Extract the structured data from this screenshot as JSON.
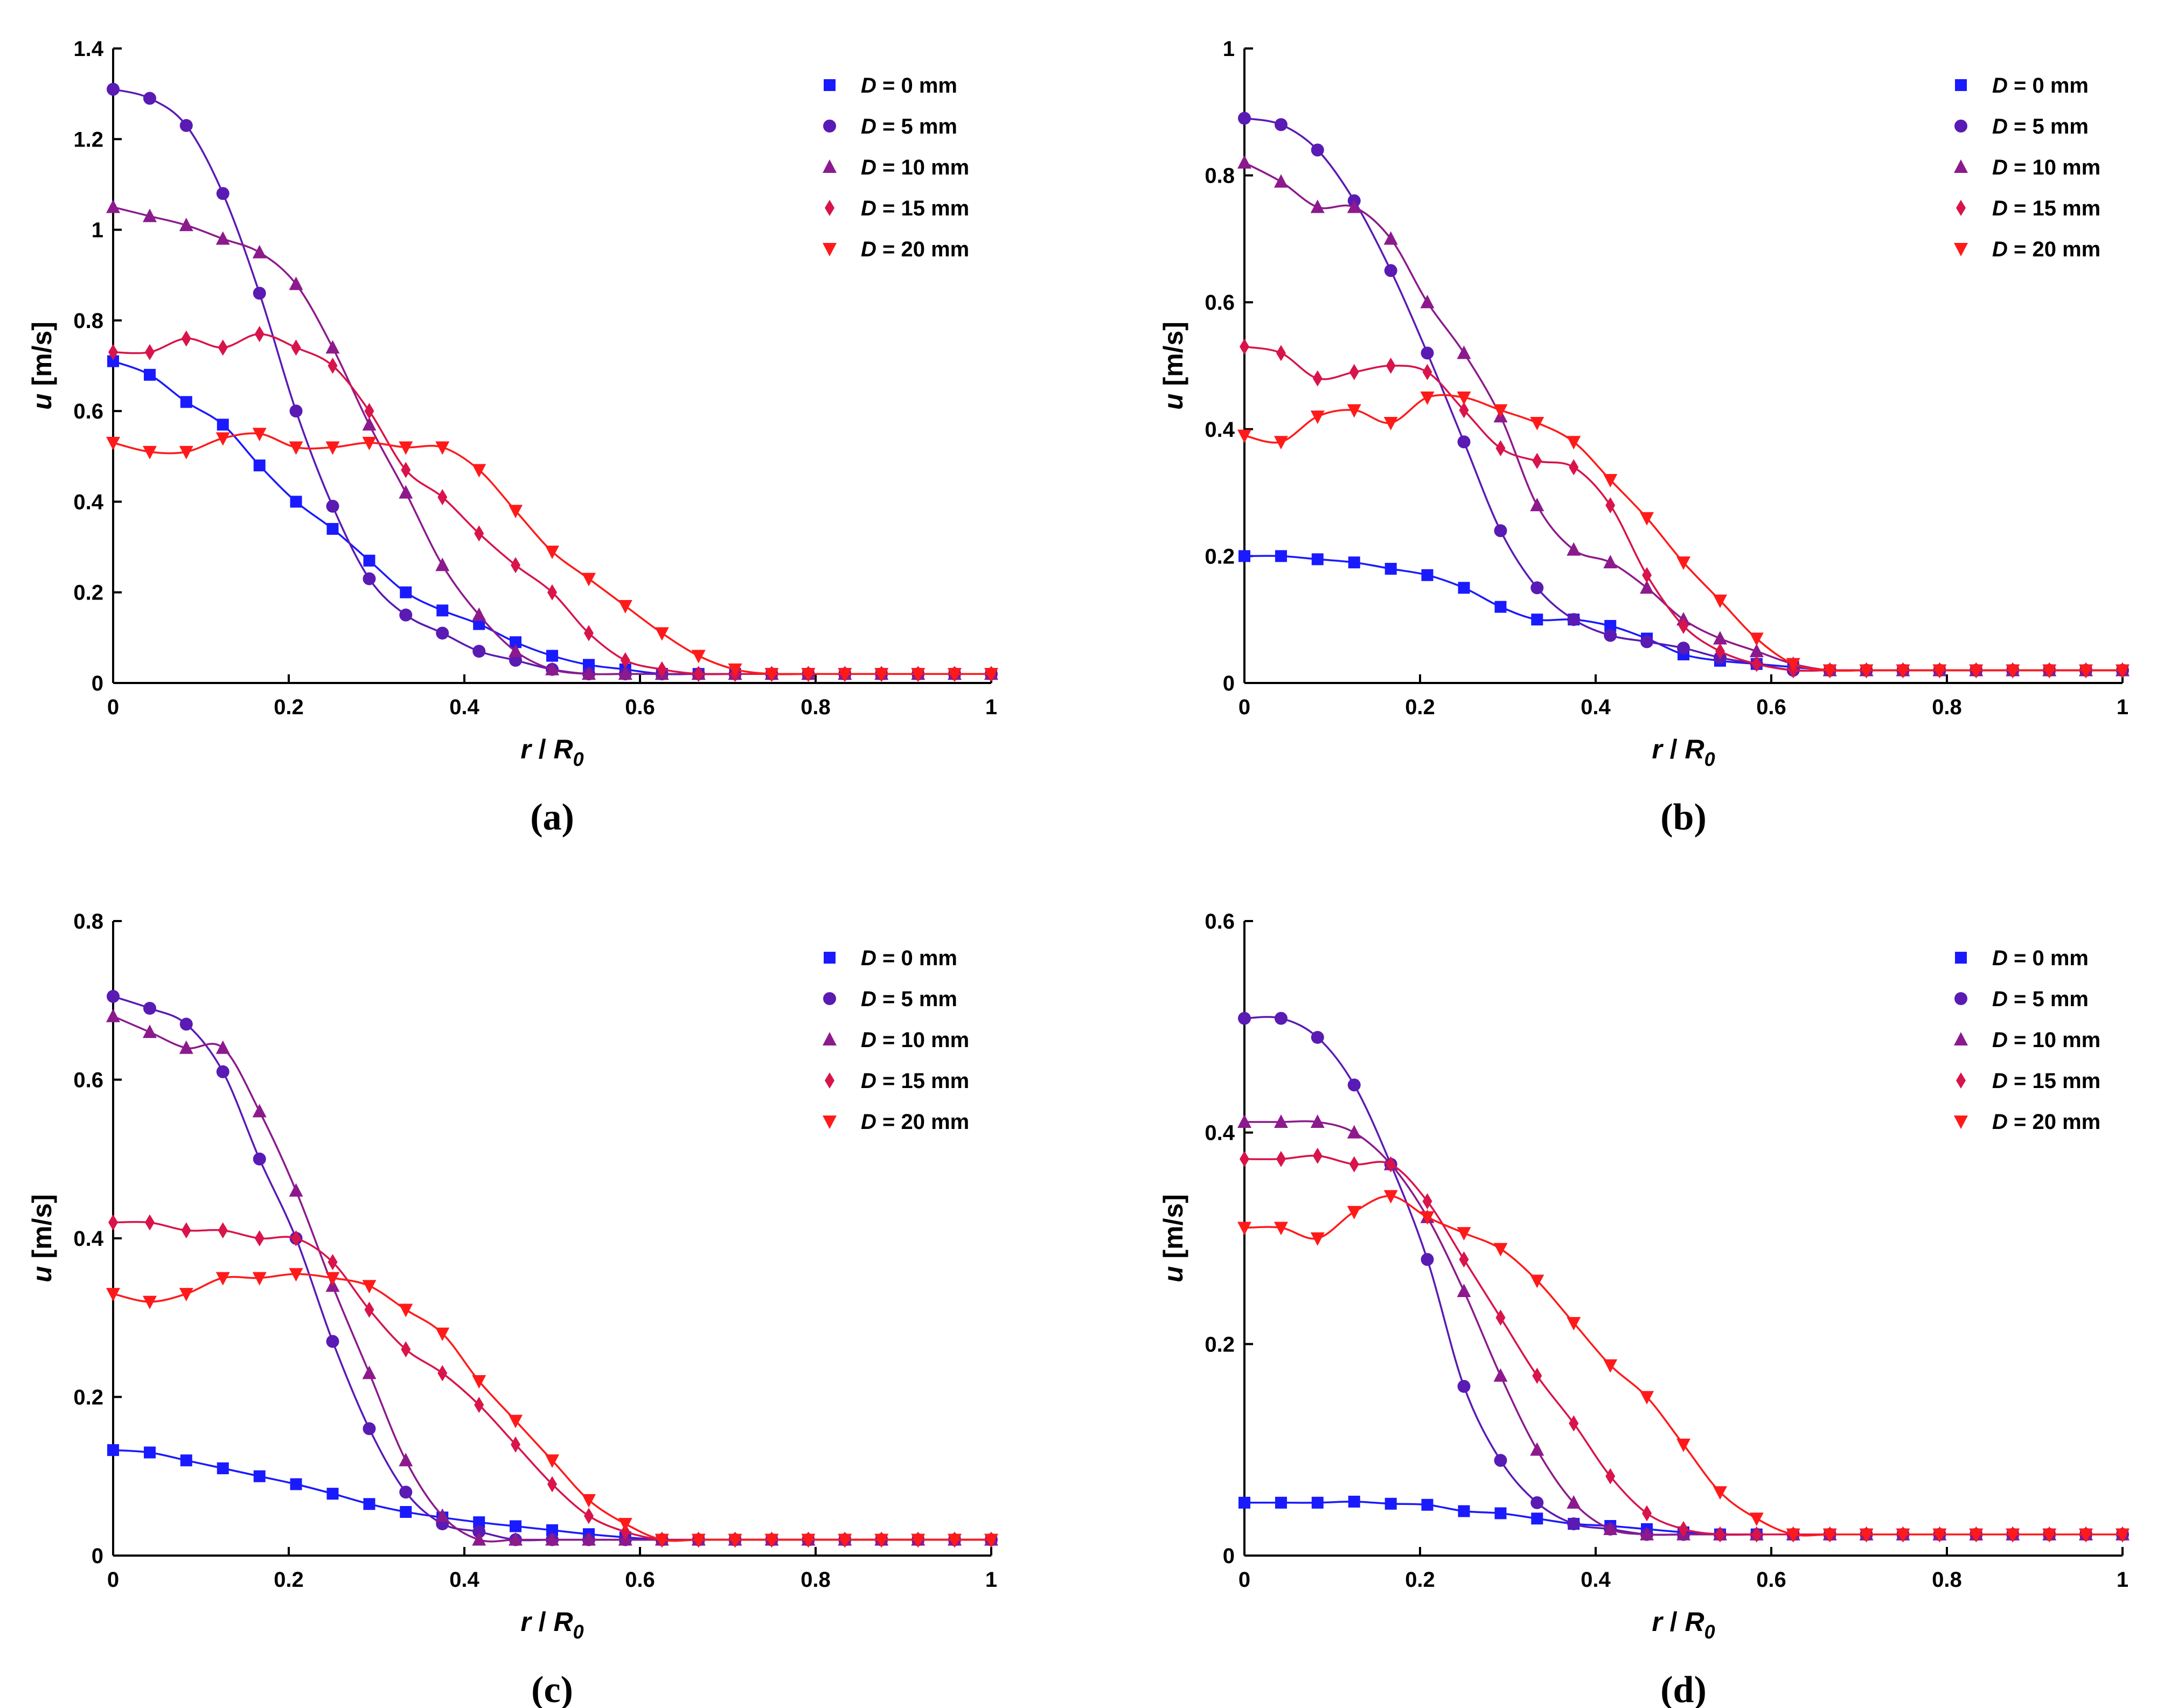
{
  "figure": {
    "x_label": {
      "italic": "r",
      "sep": " / ",
      "main": "R",
      "sub": "0"
    },
    "y_label": {
      "italic": "u",
      "unit": " [m/s]"
    },
    "legend_prefix": "D",
    "series_style": [
      {
        "name": "D = 0 mm",
        "value_text": " = 0 mm",
        "color": "#1a1aff",
        "marker": "square"
      },
      {
        "name": "D = 5 mm",
        "value_text": " = 5 mm",
        "color": "#5a1ab4",
        "marker": "circle"
      },
      {
        "name": "D = 10 mm",
        "value_text": " = 10 mm",
        "color": "#8c1a8c",
        "marker": "triangle-up"
      },
      {
        "name": "D = 15 mm",
        "value_text": " = 15 mm",
        "color": "#d8144a",
        "marker": "diamond"
      },
      {
        "name": "D = 20 mm",
        "value_text": " = 20 mm",
        "color": "#ff1a1a",
        "marker": "triangle-down"
      }
    ]
  },
  "chart_data": [
    {
      "type": "line",
      "caption": "(a)",
      "xlabel": "r / R0",
      "ylabel": "u [m/s]",
      "xlim": [
        0,
        1
      ],
      "ylim": [
        0,
        1.4
      ],
      "xticks": [
        0,
        0.2,
        0.4,
        0.6,
        0.8,
        1
      ],
      "xtick_labels": [
        "0",
        "0.2",
        "0.4",
        "0.6",
        "0.8",
        "1"
      ],
      "yticks": [
        0,
        0.2,
        0.4,
        0.6,
        0.8,
        1,
        1.2,
        1.4
      ],
      "ytick_labels": [
        "0",
        "0.2",
        "0.4",
        "0.6",
        "0.8",
        "1",
        "1.2",
        "1.4"
      ],
      "legend": [
        "D = 0 mm",
        "D = 5 mm",
        "D = 10 mm",
        "D = 15 mm",
        "D = 20 mm"
      ],
      "legend_position": "top-right",
      "x": [
        0,
        0.0417,
        0.0833,
        0.125,
        0.1667,
        0.2083,
        0.25,
        0.2917,
        0.3333,
        0.375,
        0.4167,
        0.4583,
        0.5,
        0.5417,
        0.5833,
        0.625,
        0.6667,
        0.7083,
        0.75,
        0.7917,
        0.8333,
        0.875,
        0.9167,
        0.9583,
        1.0
      ],
      "series": [
        {
          "name": "D = 0 mm",
          "values": [
            0.71,
            0.68,
            0.62,
            0.57,
            0.48,
            0.4,
            0.34,
            0.27,
            0.2,
            0.16,
            0.13,
            0.09,
            0.06,
            0.04,
            0.03,
            0.02,
            0.02,
            0.02,
            0.02,
            0.02,
            0.02,
            0.02,
            0.02,
            0.02,
            0.02
          ]
        },
        {
          "name": "D = 5 mm",
          "values": [
            1.31,
            1.29,
            1.23,
            1.08,
            0.86,
            0.6,
            0.39,
            0.23,
            0.15,
            0.11,
            0.07,
            0.05,
            0.03,
            0.02,
            0.02,
            0.02,
            0.02,
            0.02,
            0.02,
            0.02,
            0.02,
            0.02,
            0.02,
            0.02,
            0.02
          ]
        },
        {
          "name": "D = 10 mm",
          "values": [
            1.05,
            1.03,
            1.01,
            0.98,
            0.95,
            0.88,
            0.74,
            0.57,
            0.42,
            0.26,
            0.15,
            0.07,
            0.03,
            0.02,
            0.02,
            0.02,
            0.02,
            0.02,
            0.02,
            0.02,
            0.02,
            0.02,
            0.02,
            0.02,
            0.02
          ]
        },
        {
          "name": "D = 15 mm",
          "values": [
            0.73,
            0.73,
            0.76,
            0.74,
            0.77,
            0.74,
            0.7,
            0.6,
            0.47,
            0.41,
            0.33,
            0.26,
            0.2,
            0.11,
            0.05,
            0.03,
            0.02,
            0.02,
            0.02,
            0.02,
            0.02,
            0.02,
            0.02,
            0.02,
            0.02
          ]
        },
        {
          "name": "D = 20 mm",
          "values": [
            0.53,
            0.51,
            0.51,
            0.54,
            0.55,
            0.52,
            0.52,
            0.53,
            0.52,
            0.52,
            0.47,
            0.38,
            0.29,
            0.23,
            0.17,
            0.11,
            0.06,
            0.03,
            0.02,
            0.02,
            0.02,
            0.02,
            0.02,
            0.02,
            0.02
          ]
        }
      ]
    },
    {
      "type": "line",
      "caption": "(b)",
      "xlabel": "r / R0",
      "ylabel": "u [m/s]",
      "xlim": [
        0,
        1
      ],
      "ylim": [
        0,
        1
      ],
      "xticks": [
        0,
        0.2,
        0.4,
        0.6,
        0.8,
        1
      ],
      "xtick_labels": [
        "0",
        "0.2",
        "0.4",
        "0.6",
        "0.8",
        "1"
      ],
      "yticks": [
        0,
        0.2,
        0.4,
        0.6,
        0.8,
        1
      ],
      "ytick_labels": [
        "0",
        "0.2",
        "0.4",
        "0.6",
        "0.8",
        "1"
      ],
      "legend": [
        "D = 0 mm",
        "D = 5 mm",
        "D = 10 mm",
        "D = 15 mm",
        "D = 20 mm"
      ],
      "legend_position": "top-right",
      "x": [
        0,
        0.0417,
        0.0833,
        0.125,
        0.1667,
        0.2083,
        0.25,
        0.2917,
        0.3333,
        0.375,
        0.4167,
        0.4583,
        0.5,
        0.5417,
        0.5833,
        0.625,
        0.6667,
        0.7083,
        0.75,
        0.7917,
        0.8333,
        0.875,
        0.9167,
        0.9583,
        1.0
      ],
      "series": [
        {
          "name": "D = 0 mm",
          "values": [
            0.2,
            0.2,
            0.195,
            0.19,
            0.18,
            0.17,
            0.15,
            0.12,
            0.1,
            0.1,
            0.09,
            0.07,
            0.045,
            0.035,
            0.03,
            0.025,
            0.02,
            0.02,
            0.02,
            0.02,
            0.02,
            0.02,
            0.02,
            0.02,
            0.02
          ]
        },
        {
          "name": "D = 5 mm",
          "values": [
            0.89,
            0.88,
            0.84,
            0.76,
            0.65,
            0.52,
            0.38,
            0.24,
            0.15,
            0.1,
            0.075,
            0.065,
            0.055,
            0.04,
            0.03,
            0.02,
            0.02,
            0.02,
            0.02,
            0.02,
            0.02,
            0.02,
            0.02,
            0.02,
            0.02
          ]
        },
        {
          "name": "D = 10 mm",
          "values": [
            0.82,
            0.79,
            0.75,
            0.75,
            0.7,
            0.6,
            0.52,
            0.42,
            0.28,
            0.21,
            0.19,
            0.15,
            0.1,
            0.07,
            0.05,
            0.03,
            0.02,
            0.02,
            0.02,
            0.02,
            0.02,
            0.02,
            0.02,
            0.02,
            0.02
          ]
        },
        {
          "name": "D = 15 mm",
          "values": [
            0.53,
            0.52,
            0.48,
            0.49,
            0.5,
            0.49,
            0.43,
            0.37,
            0.35,
            0.34,
            0.28,
            0.17,
            0.09,
            0.05,
            0.03,
            0.02,
            0.02,
            0.02,
            0.02,
            0.02,
            0.02,
            0.02,
            0.02,
            0.02,
            0.02
          ]
        },
        {
          "name": "D = 20 mm",
          "values": [
            0.39,
            0.38,
            0.42,
            0.43,
            0.41,
            0.45,
            0.45,
            0.43,
            0.41,
            0.38,
            0.32,
            0.26,
            0.19,
            0.13,
            0.07,
            0.03,
            0.02,
            0.02,
            0.02,
            0.02,
            0.02,
            0.02,
            0.02,
            0.02,
            0.02
          ]
        }
      ]
    },
    {
      "type": "line",
      "caption": "(c)",
      "xlabel": "r / R0",
      "ylabel": "u [m/s]",
      "xlim": [
        0,
        1
      ],
      "ylim": [
        0,
        0.8
      ],
      "xticks": [
        0,
        0.2,
        0.4,
        0.6,
        0.8,
        1
      ],
      "xtick_labels": [
        "0",
        "0.2",
        "0.4",
        "0.6",
        "0.8",
        "1"
      ],
      "yticks": [
        0,
        0.2,
        0.4,
        0.6,
        0.8
      ],
      "ytick_labels": [
        "0",
        "0.2",
        "0.4",
        "0.6",
        "0.8"
      ],
      "legend": [
        "D = 0 mm",
        "D = 5 mm",
        "D = 10 mm",
        "D = 15 mm",
        "D = 20 mm"
      ],
      "legend_position": "top-right",
      "x": [
        0,
        0.0417,
        0.0833,
        0.125,
        0.1667,
        0.2083,
        0.25,
        0.2917,
        0.3333,
        0.375,
        0.4167,
        0.4583,
        0.5,
        0.5417,
        0.5833,
        0.625,
        0.6667,
        0.7083,
        0.75,
        0.7917,
        0.8333,
        0.875,
        0.9167,
        0.9583,
        1.0
      ],
      "series": [
        {
          "name": "D = 0 mm",
          "values": [
            0.133,
            0.13,
            0.12,
            0.11,
            0.1,
            0.09,
            0.078,
            0.065,
            0.055,
            0.048,
            0.042,
            0.037,
            0.032,
            0.027,
            0.023,
            0.02,
            0.02,
            0.02,
            0.02,
            0.02,
            0.02,
            0.02,
            0.02,
            0.02,
            0.02
          ]
        },
        {
          "name": "D = 5 mm",
          "values": [
            0.705,
            0.69,
            0.67,
            0.61,
            0.5,
            0.4,
            0.27,
            0.16,
            0.08,
            0.04,
            0.03,
            0.02,
            0.02,
            0.02,
            0.02,
            0.02,
            0.02,
            0.02,
            0.02,
            0.02,
            0.02,
            0.02,
            0.02,
            0.02,
            0.02
          ]
        },
        {
          "name": "D = 10 mm",
          "values": [
            0.68,
            0.66,
            0.64,
            0.64,
            0.56,
            0.46,
            0.34,
            0.23,
            0.12,
            0.05,
            0.02,
            0.02,
            0.02,
            0.02,
            0.02,
            0.02,
            0.02,
            0.02,
            0.02,
            0.02,
            0.02,
            0.02,
            0.02,
            0.02,
            0.02
          ]
        },
        {
          "name": "D = 15 mm",
          "values": [
            0.42,
            0.42,
            0.41,
            0.41,
            0.4,
            0.4,
            0.37,
            0.31,
            0.26,
            0.23,
            0.19,
            0.14,
            0.09,
            0.05,
            0.03,
            0.02,
            0.02,
            0.02,
            0.02,
            0.02,
            0.02,
            0.02,
            0.02,
            0.02,
            0.02
          ]
        },
        {
          "name": "D = 20 mm",
          "values": [
            0.33,
            0.32,
            0.33,
            0.35,
            0.35,
            0.355,
            0.35,
            0.34,
            0.31,
            0.28,
            0.22,
            0.17,
            0.12,
            0.07,
            0.04,
            0.02,
            0.02,
            0.02,
            0.02,
            0.02,
            0.02,
            0.02,
            0.02,
            0.02,
            0.02
          ]
        }
      ]
    },
    {
      "type": "line",
      "caption": "(d)",
      "xlabel": "r / R0",
      "ylabel": "u [m/s]",
      "xlim": [
        0,
        1
      ],
      "ylim": [
        0,
        0.6
      ],
      "xticks": [
        0,
        0.2,
        0.4,
        0.6,
        0.8,
        1
      ],
      "xtick_labels": [
        "0",
        "0.2",
        "0.4",
        "0.6",
        "0.8",
        "1"
      ],
      "yticks": [
        0,
        0.2,
        0.4,
        0.6
      ],
      "ytick_labels": [
        "0",
        "0.2",
        "0.4",
        "0.6"
      ],
      "legend": [
        "D = 0 mm",
        "D = 5 mm",
        "D = 10 mm",
        "D = 15 mm",
        "D = 20 mm"
      ],
      "legend_position": "top-right",
      "x": [
        0,
        0.0417,
        0.0833,
        0.125,
        0.1667,
        0.2083,
        0.25,
        0.2917,
        0.3333,
        0.375,
        0.4167,
        0.4583,
        0.5,
        0.5417,
        0.5833,
        0.625,
        0.6667,
        0.7083,
        0.75,
        0.7917,
        0.8333,
        0.875,
        0.9167,
        0.9583,
        1.0
      ],
      "series": [
        {
          "name": "D = 0 mm",
          "values": [
            0.05,
            0.05,
            0.05,
            0.051,
            0.049,
            0.048,
            0.042,
            0.04,
            0.035,
            0.03,
            0.028,
            0.025,
            0.022,
            0.02,
            0.02,
            0.02,
            0.02,
            0.02,
            0.02,
            0.02,
            0.02,
            0.02,
            0.02,
            0.02,
            0.02
          ]
        },
        {
          "name": "D = 5 mm",
          "values": [
            0.508,
            0.508,
            0.49,
            0.445,
            0.37,
            0.28,
            0.16,
            0.09,
            0.05,
            0.03,
            0.025,
            0.02,
            0.02,
            0.02,
            0.02,
            0.02,
            0.02,
            0.02,
            0.02,
            0.02,
            0.02,
            0.02,
            0.02,
            0.02,
            0.02
          ]
        },
        {
          "name": "D = 10 mm",
          "values": [
            0.41,
            0.41,
            0.41,
            0.4,
            0.37,
            0.32,
            0.25,
            0.17,
            0.1,
            0.05,
            0.025,
            0.02,
            0.02,
            0.02,
            0.02,
            0.02,
            0.02,
            0.02,
            0.02,
            0.02,
            0.02,
            0.02,
            0.02,
            0.02,
            0.02
          ]
        },
        {
          "name": "D = 15 mm",
          "values": [
            0.375,
            0.375,
            0.378,
            0.37,
            0.37,
            0.335,
            0.28,
            0.225,
            0.17,
            0.125,
            0.075,
            0.04,
            0.025,
            0.02,
            0.02,
            0.02,
            0.02,
            0.02,
            0.02,
            0.02,
            0.02,
            0.02,
            0.02,
            0.02,
            0.02
          ]
        },
        {
          "name": "D = 20 mm",
          "values": [
            0.31,
            0.31,
            0.3,
            0.325,
            0.34,
            0.32,
            0.305,
            0.29,
            0.26,
            0.22,
            0.18,
            0.15,
            0.105,
            0.06,
            0.035,
            0.02,
            0.02,
            0.02,
            0.02,
            0.02,
            0.02,
            0.02,
            0.02,
            0.02,
            0.02
          ]
        }
      ]
    }
  ]
}
